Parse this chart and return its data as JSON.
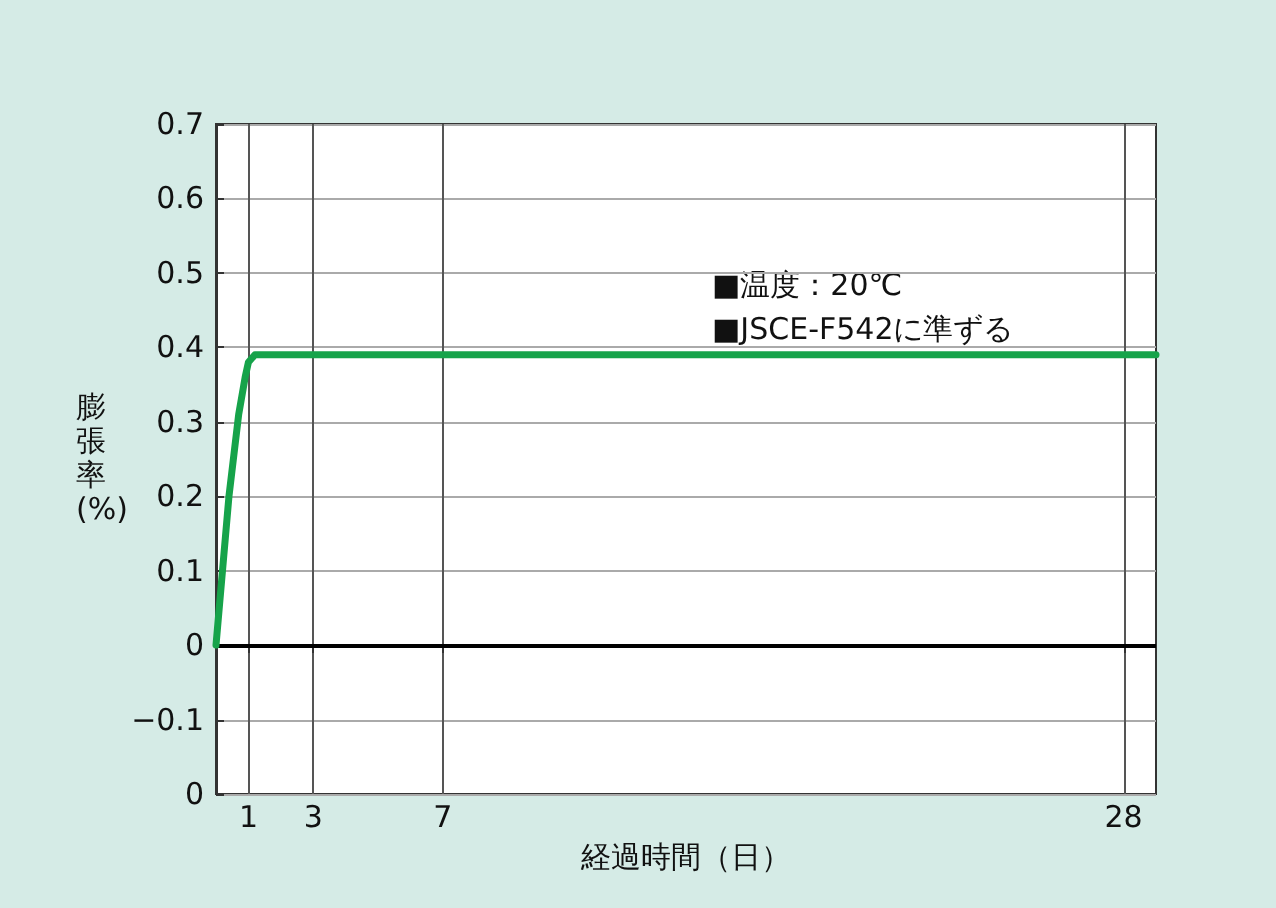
{
  "chart_data": {
    "type": "line",
    "xlabel": "経過時間（日）",
    "ylabel": "膨張率\n(%)",
    "annotations": [
      "■温度：20℃",
      "■JSCE-F542に準ずる"
    ],
    "series": [
      {
        "color": "#16a34a",
        "x": [
          0,
          0.4,
          0.7,
          0.9,
          1.0,
          1.2,
          1.5,
          29
        ],
        "values": [
          0,
          0.2,
          0.31,
          0.36,
          0.38,
          0.39,
          0.39,
          0.39
        ]
      }
    ],
    "xlim": [
      0,
      29
    ],
    "xticks": [
      1,
      3,
      7,
      28
    ],
    "ylim": [
      -0.2,
      0.7
    ],
    "yticks": [
      {
        "value": -0.2,
        "label": "0"
      },
      {
        "value": -0.1,
        "label": "−0.1"
      },
      0,
      0.1,
      0.2,
      0.3,
      0.4,
      0.5,
      0.6,
      0.7
    ],
    "ref_lines": [
      {
        "axis": "y",
        "value": 0,
        "color": "#000000"
      }
    ],
    "grid": true,
    "marker": "none",
    "line_style": "solid"
  }
}
